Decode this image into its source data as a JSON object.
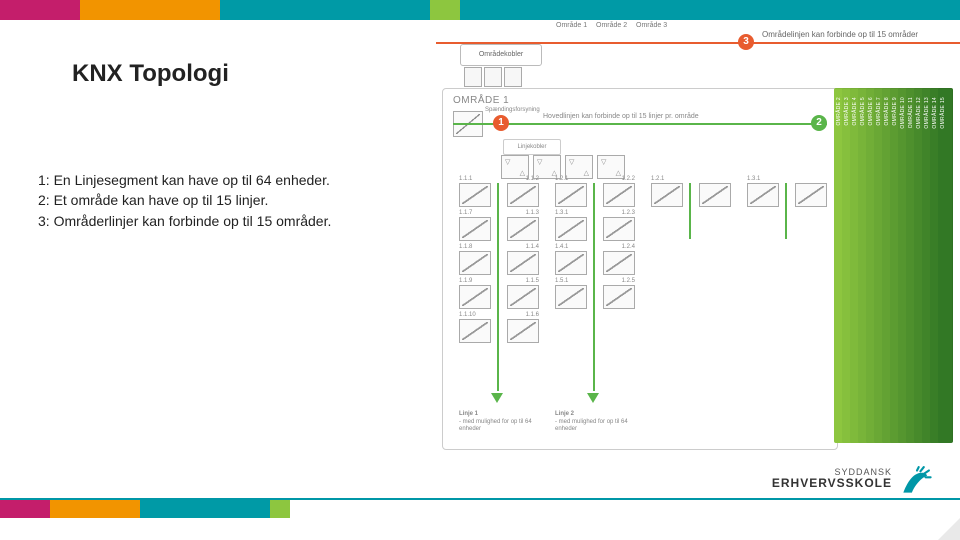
{
  "colors": {
    "topbar": [
      "#c41e6b",
      "#f29400",
      "#009aa6",
      "#8dc63f",
      "#009aa6"
    ],
    "topbar_widths": [
      80,
      140,
      210,
      30,
      500
    ],
    "bottombar": [
      "#c41e6b",
      "#f29400",
      "#009aa6",
      "#8dc63f"
    ],
    "bottombar_widths": [
      50,
      90,
      130,
      20
    ],
    "accent_teal": "#0097a7",
    "orange": "#e85c2f",
    "green": "#5ab54a",
    "stack_shades": [
      "#8dc63f",
      "#86c03d",
      "#7fba3b",
      "#78b439",
      "#71ae37",
      "#6aa835",
      "#63a233",
      "#5c9c31",
      "#55962f",
      "#4e902d",
      "#478a2b",
      "#408429",
      "#397e27",
      "#327825"
    ]
  },
  "title": "KNX Topologi",
  "bullets": {
    "b1": "1: En Linjesegment kan have op til 64 enheder.",
    "b2": "2: Et område kan have op til 15 linjer.",
    "b3": "3: Områderlinjer kan forbinde op til 15 områder."
  },
  "diagram": {
    "area_line_caption": "Områdelinjen kan forbinde op til 15 områder",
    "area_tabs": [
      "Område 1",
      "Område 2",
      "Område 3"
    ],
    "area_coupler_label": "Områdekobler",
    "main_box_title": "OMRÅDE 1",
    "psu_label": "Spændingsforsyning",
    "main_line_text": "Hovedlinjen kan forbinde op til 15 linjer pr. område",
    "linecoupler_label": "Linjekobler",
    "badges": {
      "b1": "1",
      "b2": "2",
      "b3": "3"
    },
    "columns": [
      {
        "pairs": [
          [
            "1.1.1",
            "1.1.2"
          ],
          [
            "1.1.7",
            "1.1.3"
          ],
          [
            "1.1.8",
            "1.1.4"
          ],
          [
            "1.1.9",
            "1.1.5"
          ],
          [
            "1.1.10",
            "1.1.6"
          ]
        ],
        "caption_title": "Linje 1",
        "caption_sub": "- med mulighed for op til 64 enheder"
      },
      {
        "pairs": [
          [
            "1.2.1",
            "1.2.2"
          ],
          [
            "1.3.1",
            "1.2.3"
          ],
          [
            "1.4.1",
            "1.2.4"
          ],
          [
            "1.5.1",
            "1.2.5"
          ],
          [
            "",
            ""
          ]
        ],
        "caption_title": "Linje 2",
        "caption_sub": "- med mulighed for op til 64 enheder"
      }
    ],
    "extra_cols": [
      {
        "devs": [
          [
            "",
            "",
            ""
          ]
        ],
        "top_labels": [
          "1.2.1"
        ]
      },
      {
        "devs": [
          [
            "",
            "",
            ""
          ]
        ],
        "top_labels": [
          "1.3.1"
        ]
      }
    ],
    "stack_labels": [
      "OMRÅDE 2",
      "OMRÅDE 3",
      "OMRÅDE 4",
      "OMRÅDE 5",
      "OMRÅDE 6",
      "OMRÅDE 7",
      "OMRÅDE 8",
      "OMRÅDE 9",
      "OMRÅDE 10",
      "OMRÅDE 11",
      "OMRÅDE 12",
      "OMRÅDE 13",
      "OMRÅDE 14",
      "OMRÅDE 15"
    ]
  },
  "logo": {
    "line1": "SYDDANSK",
    "line2": "ERHVERVSSKOLE"
  }
}
